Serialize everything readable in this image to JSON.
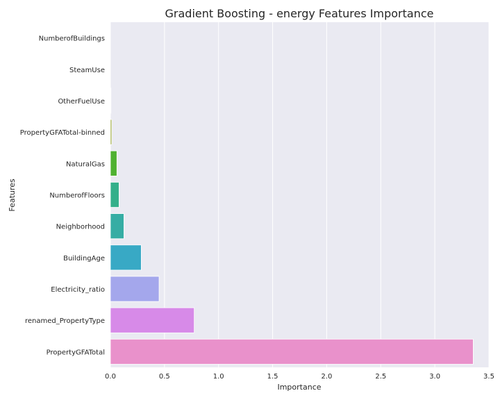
{
  "chart_data": {
    "type": "bar",
    "orientation": "horizontal",
    "title": "Gradient Boosting - energy Features Importance",
    "xlabel": "Importance",
    "ylabel": "Features",
    "xlim": [
      0,
      3.5
    ],
    "xticks": [
      "0.0",
      "0.5",
      "1.0",
      "1.5",
      "2.0",
      "2.5",
      "3.0",
      "3.5"
    ],
    "grid": true,
    "categories": [
      "NumberofBuildings",
      "SteamUse",
      "OtherFuelUse",
      "PropertyGFATotal-binned",
      "NaturalGas",
      "NumberofFloors",
      "Neighborhood",
      "BuildingAge",
      "Electricity_ratio",
      "renamed_PropertyType",
      "PropertyGFATotal"
    ],
    "values": [
      0.0,
      0.0,
      0.005,
      0.012,
      0.06,
      0.08,
      0.125,
      0.285,
      0.45,
      0.775,
      3.355
    ],
    "colors": [
      "#f77189",
      "#e18a31",
      "#bb9832",
      "#97a431",
      "#50b131",
      "#34af8a",
      "#36ada4",
      "#38a9c5",
      "#a4a7ec",
      "#d78ae8",
      "#e991cb"
    ]
  }
}
